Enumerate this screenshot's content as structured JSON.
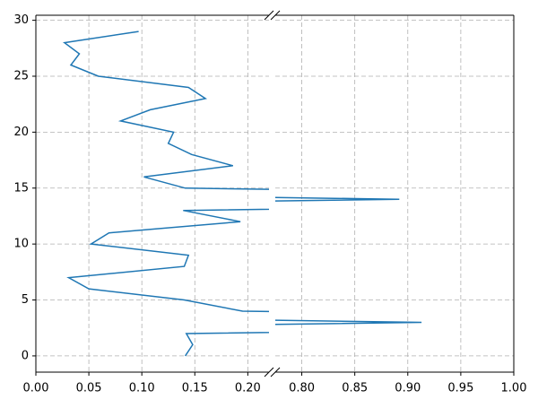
{
  "chart_data": {
    "type": "line",
    "color": "#1f77b4",
    "grid": true,
    "y": [
      0,
      1,
      2,
      3,
      4,
      5,
      6,
      7,
      8,
      9,
      10,
      11,
      12,
      13,
      14,
      15,
      16,
      17,
      18,
      19,
      20,
      21,
      22,
      23,
      24,
      25,
      26,
      27,
      28,
      29
    ],
    "values": [
      0.141,
      0.148,
      0.142,
      0.913,
      0.195,
      0.14,
      0.05,
      0.031,
      0.14,
      0.144,
      0.052,
      0.069,
      0.193,
      0.139,
      0.892,
      0.141,
      0.102,
      0.186,
      0.147,
      0.125,
      0.13,
      0.08,
      0.108,
      0.16,
      0.144,
      0.059,
      0.033,
      0.041,
      0.027,
      0.097
    ],
    "ylim": [
      -1.45,
      30.45
    ],
    "yticks": [
      0,
      5,
      10,
      15,
      20,
      25,
      30
    ],
    "panels": [
      {
        "xlim": [
          0,
          0.22
        ],
        "xticks": [
          {
            "value": 0,
            "label": "0.00"
          },
          0.05,
          {
            "value": 0.1,
            "label": "0.10"
          },
          0.15,
          {
            "value": 0.2,
            "label": "0.20"
          }
        ]
      },
      {
        "xlim": [
          0.775,
          1.0
        ],
        "xticks": [
          {
            "value": 0.8,
            "label": "0.80"
          },
          0.85,
          {
            "value": 0.9,
            "label": "0.90"
          },
          0.95,
          {
            "value": 1.0,
            "label": "1.00"
          }
        ]
      }
    ]
  }
}
